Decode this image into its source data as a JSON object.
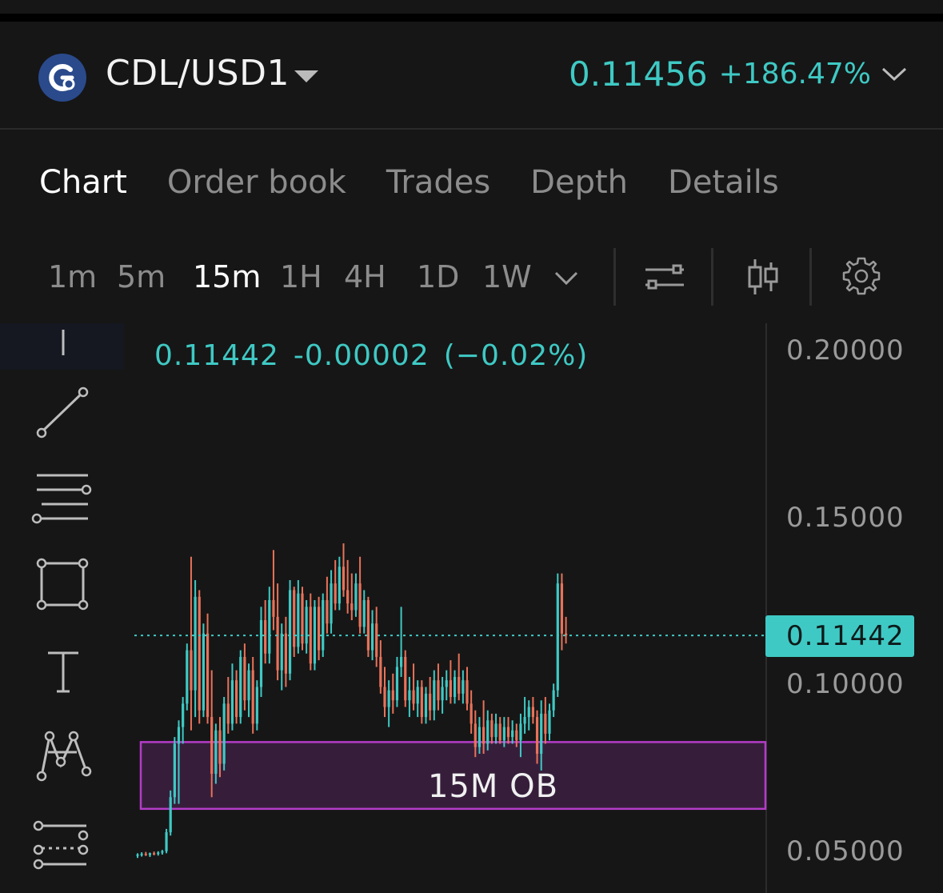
{
  "header": {
    "pair": "CDL/USD1",
    "price": "0.11456",
    "change": "+186.47%",
    "logo_icon": "cdl-coin-logo",
    "accent_color": "#3fc9c4"
  },
  "tabs": [
    {
      "label": "Chart",
      "active": true
    },
    {
      "label": "Order book",
      "active": false
    },
    {
      "label": "Trades",
      "active": false
    },
    {
      "label": "Depth",
      "active": false
    },
    {
      "label": "Details",
      "active": false
    }
  ],
  "intervals": [
    {
      "label": "1m",
      "active": false
    },
    {
      "label": "5m",
      "active": false
    },
    {
      "label": "15m",
      "active": true
    },
    {
      "label": "1H",
      "active": false
    },
    {
      "label": "4H",
      "active": false
    },
    {
      "label": "1D",
      "active": false
    },
    {
      "label": "1W",
      "active": false
    }
  ],
  "toolbar_icons": [
    "chevron-down-icon",
    "indicators-icon",
    "candle-type-icon",
    "gear-icon"
  ],
  "drawing_tools": [
    "trend-line-icon",
    "horizontal-lines-icon",
    "rectangle-icon",
    "text-icon",
    "pattern-icon",
    "fib-icon"
  ],
  "chart": {
    "legend_price": "0.11442",
    "legend_change": "-0.00002",
    "legend_pct": "(−0.02%)",
    "current_price_label": "0.11442",
    "zone_label": "15M OB",
    "y_ticks": [
      "0.20000",
      "0.15000",
      "0.10000",
      "0.05000"
    ]
  },
  "chart_data": {
    "type": "candlestick",
    "ylim": [
      0.03,
      0.2
    ],
    "up_color": "#3fc9c4",
    "down_color": "#e8725a",
    "zone_color": "#b43cc8",
    "current_price": 0.11442,
    "zone": {
      "low": 0.0625,
      "high": 0.0825,
      "label": "15M OB"
    },
    "candles": [
      [
        0.0485,
        0.0492,
        0.0478,
        0.0488
      ],
      [
        0.0488,
        0.0495,
        0.0482,
        0.049
      ],
      [
        0.049,
        0.0496,
        0.0484,
        0.0487
      ],
      [
        0.0487,
        0.0494,
        0.0481,
        0.0492
      ],
      [
        0.0492,
        0.0497,
        0.0486,
        0.049
      ],
      [
        0.049,
        0.0498,
        0.0485,
        0.0494
      ],
      [
        0.0494,
        0.0502,
        0.0488,
        0.0498
      ],
      [
        0.0498,
        0.0565,
        0.0492,
        0.0555
      ],
      [
        0.0555,
        0.068,
        0.0545,
        0.066
      ],
      [
        0.066,
        0.084,
        0.064,
        0.082
      ],
      [
        0.082,
        0.089,
        0.064,
        0.087
      ],
      [
        0.087,
        0.096,
        0.082,
        0.094
      ],
      [
        0.094,
        0.112,
        0.092,
        0.11
      ],
      [
        0.11,
        0.138,
        0.086,
        0.098
      ],
      [
        0.098,
        0.131,
        0.09,
        0.126
      ],
      [
        0.126,
        0.128,
        0.088,
        0.092
      ],
      [
        0.092,
        0.118,
        0.09,
        0.115
      ],
      [
        0.115,
        0.121,
        0.088,
        0.09
      ],
      [
        0.09,
        0.104,
        0.066,
        0.073
      ],
      [
        0.073,
        0.088,
        0.07,
        0.086
      ],
      [
        0.086,
        0.09,
        0.072,
        0.076
      ],
      [
        0.076,
        0.096,
        0.074,
        0.094
      ],
      [
        0.094,
        0.102,
        0.085,
        0.088
      ],
      [
        0.088,
        0.106,
        0.086,
        0.101
      ],
      [
        0.101,
        0.104,
        0.088,
        0.09
      ],
      [
        0.09,
        0.11,
        0.088,
        0.108
      ],
      [
        0.108,
        0.112,
        0.092,
        0.095
      ],
      [
        0.095,
        0.106,
        0.09,
        0.104
      ],
      [
        0.104,
        0.108,
        0.085,
        0.088
      ],
      [
        0.088,
        0.101,
        0.086,
        0.099
      ],
      [
        0.099,
        0.123,
        0.096,
        0.119
      ],
      [
        0.119,
        0.125,
        0.106,
        0.109
      ],
      [
        0.109,
        0.129,
        0.106,
        0.125
      ],
      [
        0.125,
        0.14,
        0.116,
        0.12
      ],
      [
        0.12,
        0.13,
        0.101,
        0.104
      ],
      [
        0.104,
        0.118,
        0.098,
        0.115
      ],
      [
        0.115,
        0.12,
        0.099,
        0.103
      ],
      [
        0.103,
        0.131,
        0.101,
        0.128
      ],
      [
        0.128,
        0.129,
        0.108,
        0.111
      ],
      [
        0.111,
        0.131,
        0.109,
        0.127
      ],
      [
        0.127,
        0.129,
        0.11,
        0.112
      ],
      [
        0.112,
        0.125,
        0.109,
        0.123
      ],
      [
        0.123,
        0.127,
        0.104,
        0.106
      ],
      [
        0.106,
        0.125,
        0.104,
        0.123
      ],
      [
        0.123,
        0.126,
        0.107,
        0.11
      ],
      [
        0.11,
        0.127,
        0.108,
        0.125
      ],
      [
        0.125,
        0.132,
        0.115,
        0.118
      ],
      [
        0.118,
        0.134,
        0.115,
        0.13
      ],
      [
        0.13,
        0.137,
        0.122,
        0.124
      ],
      [
        0.124,
        0.138,
        0.122,
        0.135
      ],
      [
        0.135,
        0.142,
        0.126,
        0.128
      ],
      [
        0.128,
        0.137,
        0.121,
        0.124
      ],
      [
        0.124,
        0.133,
        0.119,
        0.122
      ],
      [
        0.122,
        0.133,
        0.12,
        0.13
      ],
      [
        0.13,
        0.138,
        0.115,
        0.117
      ],
      [
        0.117,
        0.128,
        0.115,
        0.125
      ],
      [
        0.125,
        0.126,
        0.108,
        0.11
      ],
      [
        0.11,
        0.122,
        0.107,
        0.118
      ],
      [
        0.118,
        0.123,
        0.105,
        0.108
      ],
      [
        0.108,
        0.113,
        0.097,
        0.099
      ],
      [
        0.099,
        0.105,
        0.09,
        0.093
      ],
      [
        0.093,
        0.101,
        0.087,
        0.098
      ],
      [
        0.098,
        0.103,
        0.091,
        0.095
      ],
      [
        0.095,
        0.108,
        0.093,
        0.105
      ],
      [
        0.105,
        0.123,
        0.102,
        0.108
      ],
      [
        0.108,
        0.11,
        0.093,
        0.095
      ],
      [
        0.095,
        0.102,
        0.09,
        0.098
      ],
      [
        0.098,
        0.106,
        0.092,
        0.094
      ],
      [
        0.094,
        0.101,
        0.09,
        0.099
      ],
      [
        0.099,
        0.101,
        0.088,
        0.09
      ],
      [
        0.09,
        0.099,
        0.088,
        0.097
      ],
      [
        0.097,
        0.102,
        0.089,
        0.092
      ],
      [
        0.092,
        0.104,
        0.089,
        0.101
      ],
      [
        0.101,
        0.106,
        0.092,
        0.095
      ],
      [
        0.095,
        0.102,
        0.091,
        0.099
      ],
      [
        0.099,
        0.104,
        0.095,
        0.101
      ],
      [
        0.101,
        0.107,
        0.094,
        0.096
      ],
      [
        0.096,
        0.104,
        0.094,
        0.102
      ],
      [
        0.102,
        0.109,
        0.095,
        0.097
      ],
      [
        0.097,
        0.104,
        0.094,
        0.101
      ],
      [
        0.101,
        0.105,
        0.092,
        0.094
      ],
      [
        0.094,
        0.098,
        0.085,
        0.088
      ],
      [
        0.088,
        0.092,
        0.078,
        0.081
      ],
      [
        0.081,
        0.09,
        0.079,
        0.087
      ],
      [
        0.087,
        0.095,
        0.079,
        0.082
      ],
      [
        0.082,
        0.092,
        0.08,
        0.089
      ],
      [
        0.089,
        0.091,
        0.082,
        0.084
      ],
      [
        0.084,
        0.091,
        0.082,
        0.088
      ],
      [
        0.088,
        0.09,
        0.082,
        0.083
      ],
      [
        0.083,
        0.09,
        0.081,
        0.087
      ],
      [
        0.087,
        0.09,
        0.082,
        0.084
      ],
      [
        0.084,
        0.089,
        0.082,
        0.086
      ],
      [
        0.086,
        0.088,
        0.081,
        0.083
      ],
      [
        0.083,
        0.091,
        0.078,
        0.088
      ],
      [
        0.088,
        0.096,
        0.085,
        0.09
      ],
      [
        0.09,
        0.095,
        0.086,
        0.093
      ],
      [
        0.093,
        0.096,
        0.088,
        0.09
      ],
      [
        0.09,
        0.092,
        0.076,
        0.079
      ],
      [
        0.079,
        0.095,
        0.074,
        0.091
      ],
      [
        0.091,
        0.096,
        0.082,
        0.085
      ],
      [
        0.085,
        0.094,
        0.083,
        0.092
      ],
      [
        0.092,
        0.1,
        0.09,
        0.098
      ],
      [
        0.098,
        0.133,
        0.096,
        0.13
      ],
      [
        0.13,
        0.133,
        0.11,
        0.115
      ],
      [
        0.115,
        0.12,
        0.112,
        0.1144
      ]
    ]
  }
}
